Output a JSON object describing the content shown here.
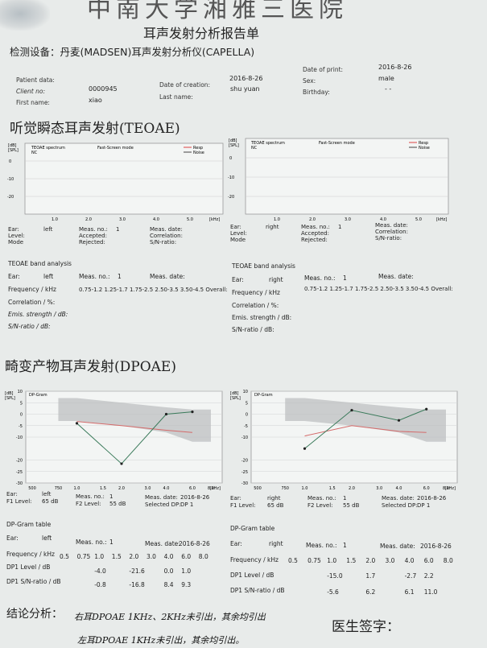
{
  "header": {
    "hospital": "中南大学湘雅三医院",
    "report_title": "耳声发射分析报告单",
    "device": "检测设备：丹麦(MADSEN)耳声发射分析仪(CAPELLA)"
  },
  "patient": {
    "patient_data_label": "Patient data:",
    "client_no_label": "Client no:",
    "client_no": "0000945",
    "first_name_label": "First name:",
    "first_name": "xiao",
    "date_of_creation_label": "Date of creation:",
    "date_of_creation": "2016-8-26",
    "last_name_label": "Last name:",
    "last_name": "shu yuan",
    "date_of_print_label": "Date of print:",
    "date_of_print": "2016-8-26",
    "sex_label": "Sex:",
    "sex": "male",
    "birthday_label": "Birthday:",
    "birthday": "- -"
  },
  "teoae": {
    "heading": "听觉瞬态耳声发射(TEOAE)",
    "left": {
      "y_unit": "[dB]",
      "y_unit2": "[SPL]",
      "chart_title": "TEOAE spectrum",
      "chart_subtitle": "NC",
      "mode_text": "Fast-Screen mode",
      "legend": [
        "Resp",
        "Noise"
      ],
      "yticks": [
        "0",
        "-10",
        "-20"
      ],
      "xticks": [
        "1.0",
        "2.0",
        "3.0",
        "4.0",
        "5.0"
      ],
      "x_unit": "[kHz]",
      "meta": {
        "ear_label": "Ear:",
        "ear": "left",
        "level_label": "Level:",
        "mode_label": "Mode",
        "meas_no_label": "Meas. no.:",
        "meas_no": "1",
        "accepted_label": "Accepted:",
        "rejected_label": "Rejected:",
        "meas_date_label": "Meas. date:",
        "correlation_label": "Correlation:",
        "sn_label": "S/N-ratio:"
      },
      "band": {
        "title": "TEOAE band analysis",
        "ear_label": "Ear:",
        "ear": "left",
        "meas_no_label": "Meas. no.:",
        "meas_no": "1",
        "meas_date_label": "Meas. date:",
        "frequency_label": "Frequency / kHz",
        "frequency": "0.75-1.2 1.25-1.7 1.75-2.5 2.50-3.5 3.50-4.5 Overall:",
        "correlation_label": "Correlation / %:",
        "emis_label": "Emis. strength / dB:",
        "sn_label": "S/N-ratio / dB:"
      }
    },
    "right": {
      "y_unit": "[dB]",
      "y_unit2": "[SPL]",
      "chart_title": "TEOAE spectrum",
      "chart_subtitle": "NC",
      "mode_text": "Fast-Screen mode",
      "legend": [
        "Resp",
        "Noise"
      ],
      "yticks": [
        "0",
        "-10",
        "-20"
      ],
      "xticks": [
        "1.0",
        "2.0",
        "3.0",
        "4.0",
        "5.0"
      ],
      "x_unit": "[kHz]",
      "meta": {
        "ear_label": "Ear:",
        "ear": "right",
        "level_label": "Level:",
        "mode_label": "Mode",
        "meas_no_label": "Meas. no.:",
        "meas_no": "1",
        "accepted_label": "Accepted:",
        "rejected_label": "Rejected:",
        "meas_date_label": "Meas. date:",
        "correlation_label": "Correlation:",
        "sn_label": "S/N-ratio:"
      },
      "band": {
        "title": "TEOAE band analysis",
        "ear_label": "Ear:",
        "ear": "right",
        "meas_no_label": "Meas. no.:",
        "meas_no": "1",
        "meas_date_label": "Meas. date:",
        "frequency_label": "Frequency / kHz",
        "frequency": "0.75-1.2 1.25-1.7 1.75-2.5 2.50-3.5 3.50-4.5 Overall:",
        "correlation_label": "Correlation / %:",
        "emis_label": "Emis. strength / dB:",
        "sn_label": "S/N-ratio / dB:"
      }
    }
  },
  "dpoae": {
    "heading": "畸变产物耳声发射(DPOAE)",
    "left": {
      "meta": {
        "ear_label": "Ear:",
        "ear": "left",
        "f1_label": "F1 Level:",
        "f1": "65 dB",
        "meas_no_label": "Meas. no.:",
        "meas_no": "1",
        "f2_label": "F2 Level:",
        "f2": "55 dB",
        "meas_date_label": "Meas. date:",
        "meas_date": "2016-8-26",
        "selected_label": "Selected DP:",
        "selected": "DP 1"
      },
      "table": {
        "title": "DP-Gram table",
        "ear_label": "Ear:",
        "ear": "left",
        "meas_no_label": "Meas. no.:",
        "meas_no": "1",
        "meas_date_label": "Meas. date:",
        "meas_date": "2016-8-26",
        "frequency_label": "Frequency / kHz",
        "level_label": "DP1 Level / dB",
        "sn_label": "DP1 S/N-ratio / dB",
        "freqs": [
          "0.5",
          "0.75",
          "1.0",
          "1.5",
          "2.0",
          "3.0",
          "4.0",
          "6.0",
          "8.0"
        ],
        "levels": [
          "",
          "",
          "-4.0",
          "",
          "-21.6",
          "",
          "0.0",
          "1.0",
          ""
        ],
        "sn": [
          "",
          "",
          "-0.8",
          "",
          "-16.8",
          "",
          "8.4",
          "9.3",
          ""
        ]
      }
    },
    "right": {
      "meta": {
        "ear_label": "Ear:",
        "ear": "right",
        "f1_label": "F1 Level:",
        "f1": "65 dB",
        "meas_no_label": "Meas. no.:",
        "meas_no": "1",
        "f2_label": "F2 Level:",
        "f2": "55 dB",
        "meas_date_label": "Meas. date:",
        "meas_date": "2016-8-26",
        "selected_label": "Selected DP:",
        "selected": "DP 1"
      },
      "table": {
        "title": "DP-Gram table",
        "ear_label": "Ear:",
        "ear": "right",
        "meas_no_label": "Meas. no.:",
        "meas_no": "1",
        "meas_date_label": "Meas. date:",
        "meas_date": "2016-8-26",
        "frequency_label": "Frequency / kHz",
        "level_label": "DP1 Level / dB",
        "sn_label": "DP1 S/N-ratio / dB",
        "freqs": [
          "0.5",
          "0.75",
          "1.0",
          "1.5",
          "2.0",
          "3.0",
          "4.0",
          "6.0",
          "8.0"
        ],
        "levels": [
          "",
          "",
          "-15.0",
          "",
          "1.7",
          "",
          "-2.7",
          "2.2",
          ""
        ],
        "sn": [
          "",
          "",
          "-5.6",
          "",
          "6.2",
          "",
          "6.1",
          "11.0",
          ""
        ]
      }
    }
  },
  "chart_data": [
    {
      "type": "line",
      "title": "DP-Gram",
      "ylabel": "[dB] [SPL]",
      "xlabel": "[kHz]",
      "ear": "left",
      "x_ticks": [
        "500",
        "750",
        "1.0",
        "1.5",
        "2.0",
        "3.0",
        "4.0",
        "6.0",
        "8.0"
      ],
      "y_ticks": [
        10,
        5,
        0,
        -5,
        -10,
        -20,
        -25,
        -30
      ],
      "ylim": [
        -30,
        10
      ],
      "x_khz": [
        1.0,
        2.0,
        4.0,
        6.0
      ],
      "series": [
        {
          "values": [
            -4.0,
            -21.6,
            0.0,
            1.0
          ]
        },
        {
          "values": [
            -3.2,
            -5.0,
            -7.0,
            -8.0
          ]
        }
      ],
      "normal_band_upper": [
        7,
        5,
        3,
        2
      ],
      "normal_band_lower": [
        -3,
        -5,
        -8,
        -12
      ]
    },
    {
      "type": "line",
      "title": "DP-Gram",
      "ylabel": "[dB] [SPL]",
      "xlabel": "[kHz]",
      "ear": "right",
      "x_ticks": [
        "500",
        "750",
        "1.0",
        "1.5",
        "2.0",
        "3.0",
        "4.0",
        "6.0",
        "8.0"
      ],
      "y_ticks": [
        10,
        5,
        0,
        -5,
        -10,
        -20,
        -25,
        -30
      ],
      "ylim": [
        -30,
        10
      ],
      "x_khz": [
        1.0,
        2.0,
        4.0,
        6.0
      ],
      "series": [
        {
          "values": [
            -15.0,
            1.7,
            -2.7,
            2.2
          ]
        },
        {
          "values": [
            -9.5,
            -5.0,
            -7.5,
            -8.0
          ]
        }
      ],
      "normal_band_upper": [
        7,
        5,
        3,
        2
      ],
      "normal_band_lower": [
        -3,
        -5,
        -8,
        -12
      ]
    }
  ],
  "colors": {
    "dp_line": "#3a7a5a",
    "noise_line": "#d46a6a",
    "norm_band": "#b9bcbd"
  },
  "footer": {
    "conclusion_label": "结论分析：",
    "conclusion_1": "右耳DPOAE 1KHz、2KHz未引出，其余均引出",
    "conclusion_2": "左耳DPOAE 1KHz未引出，其余均引出。",
    "signature_label": "医生签字："
  }
}
